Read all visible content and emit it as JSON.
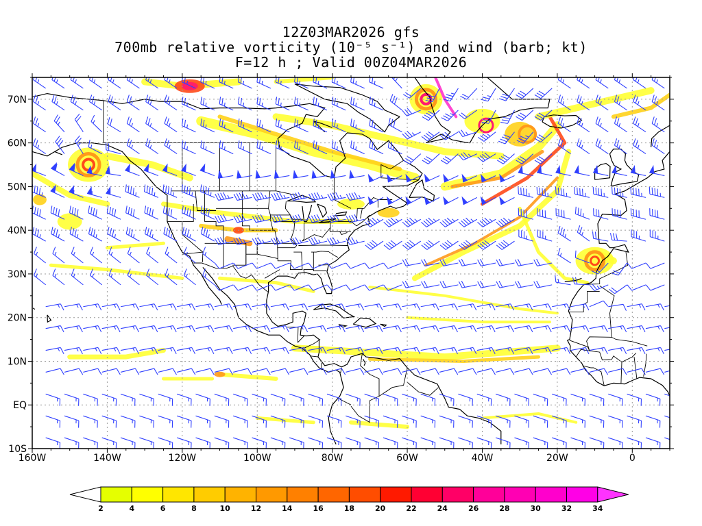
{
  "title": {
    "line1": "12Z03MAR2026 gfs",
    "line2": "700mb relative vorticity (10⁻⁵ s⁻¹) and wind (barb; kt)",
    "line3": "F=12 h ; Valid 00Z04MAR2026"
  },
  "axes": {
    "lon_labels": [
      "160W",
      "140W",
      "120W",
      "100W",
      "80W",
      "60W",
      "40W",
      "20W",
      "0"
    ],
    "lat_labels": [
      "70N",
      "60N",
      "50N",
      "40N",
      "30N",
      "20N",
      "10N",
      "EQ",
      "10S"
    ],
    "lon_range": [
      -160,
      10
    ],
    "lat_range": [
      -10,
      75
    ]
  },
  "colorbar": {
    "labels": [
      "2",
      "4",
      "6",
      "8",
      "10",
      "12",
      "14",
      "16",
      "18",
      "20",
      "22",
      "24",
      "26",
      "28",
      "30",
      "32",
      "34"
    ],
    "colors": [
      "#ffffff",
      "#e5ff00",
      "#ffff00",
      "#ffe600",
      "#ffcc00",
      "#ffb300",
      "#ff9900",
      "#ff8000",
      "#ff6600",
      "#ff4d00",
      "#ff1a00",
      "#ff0033",
      "#ff0066",
      "#ff0099",
      "#ff00b3",
      "#ff00cc",
      "#ff00e6",
      "#ff33ff"
    ]
  },
  "colors": {
    "barb": "#3040ff",
    "coast": "#000000",
    "grid": "#999999"
  }
}
